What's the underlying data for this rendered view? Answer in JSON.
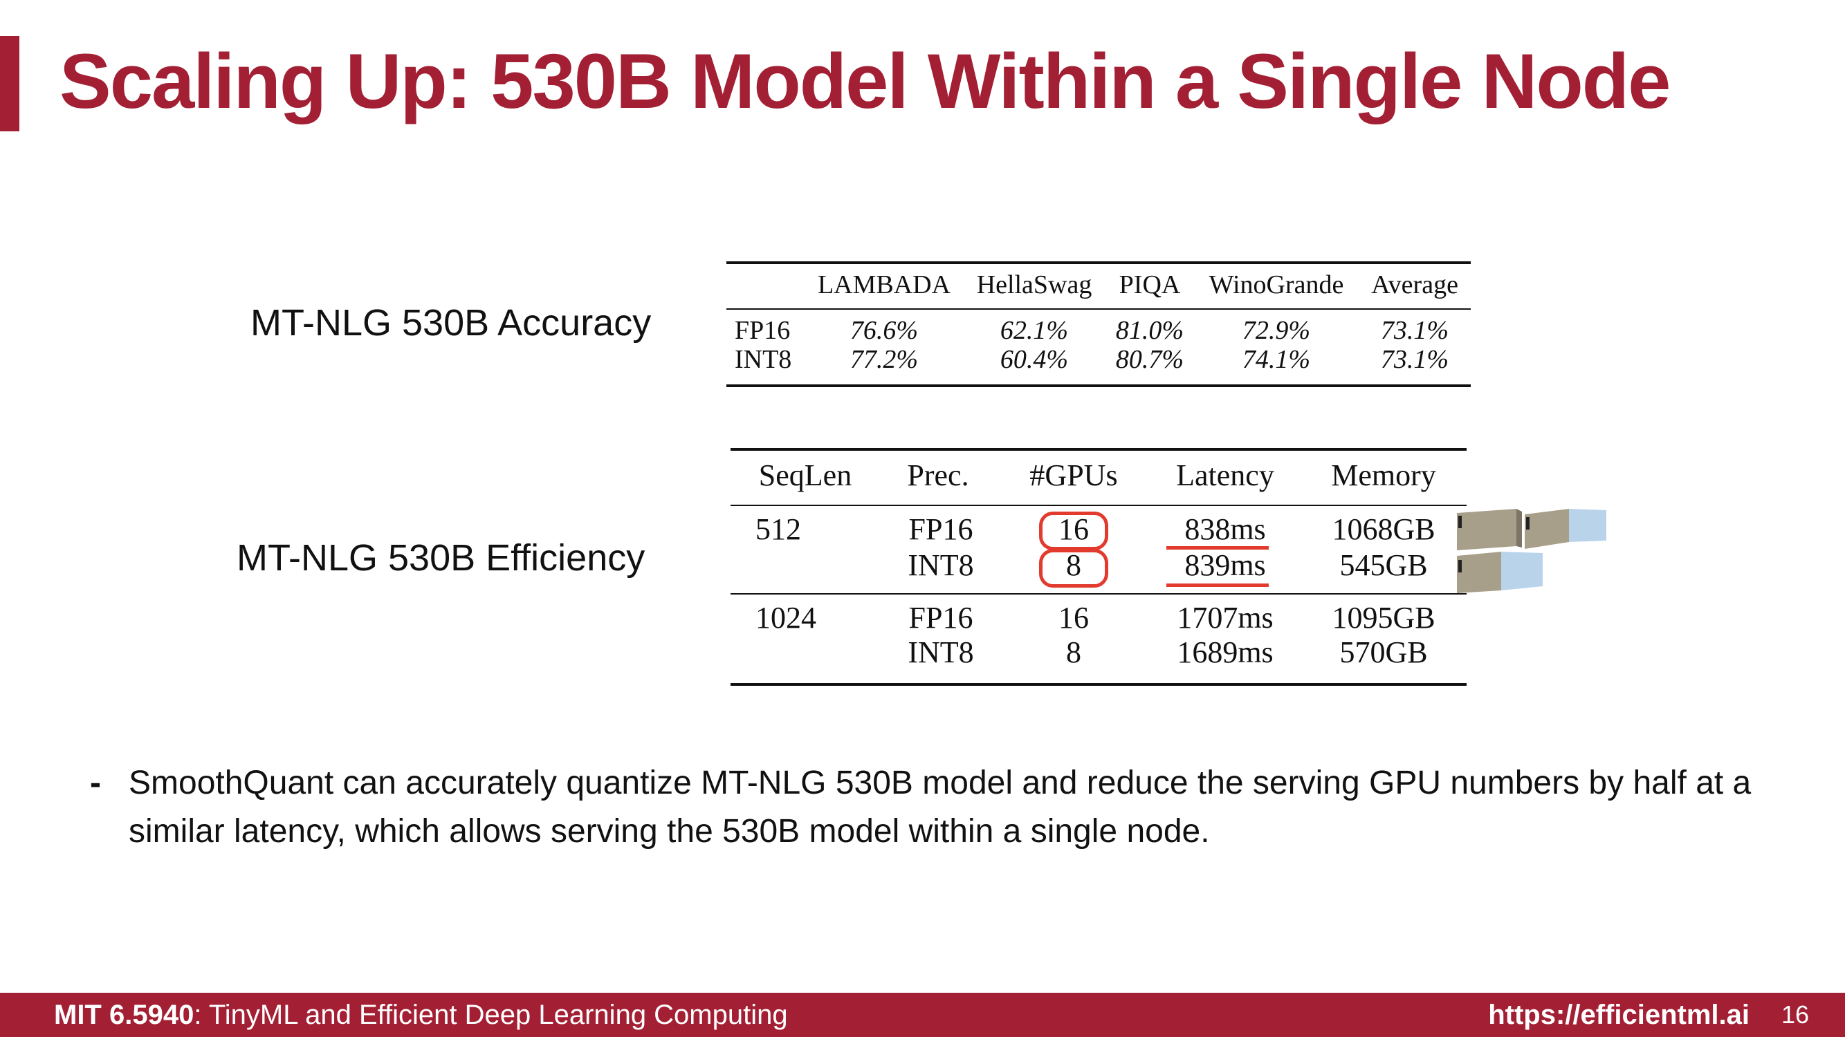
{
  "slide": {
    "title": "Scaling Up: 530B Model Within a Single Node",
    "accuracy_label": "MT-NLG 530B Accuracy",
    "efficiency_label": "MT-NLG 530B Efficiency",
    "bullet": "SmoothQuant can accurately quantize MT-NLG 530B model and reduce the serving GPU numbers by half at a similar latency, which allows serving the 530B model within a single node.",
    "bullet_marker": "-"
  },
  "accuracy_table": {
    "headers": [
      "",
      "LAMBADA",
      "HellaSwag",
      "PIQA",
      "WinoGrande",
      "Average"
    ],
    "rows": [
      [
        "FP16",
        "76.6%",
        "62.1%",
        "81.0%",
        "72.9%",
        "73.1%"
      ],
      [
        "INT8",
        "77.2%",
        "60.4%",
        "80.7%",
        "74.1%",
        "73.1%"
      ]
    ]
  },
  "efficiency_table": {
    "headers": [
      "SeqLen",
      "Prec.",
      "#GPUs",
      "Latency",
      "Memory"
    ],
    "rows": [
      [
        "512",
        "FP16",
        "16",
        "838ms",
        "1068GB"
      ],
      [
        "",
        "INT8",
        "8",
        "839ms",
        "545GB"
      ],
      [
        "1024",
        "FP16",
        "16",
        "1707ms",
        "1095GB"
      ],
      [
        "",
        "INT8",
        "8",
        "1689ms",
        "570GB"
      ]
    ]
  },
  "highlight_colors": {
    "accent": "#a31f34",
    "annotation": "#e23b2e"
  },
  "icons": [
    "server-icon",
    "server-icon",
    "server-icon"
  ],
  "footer": {
    "course_bold": "MIT 6.5940",
    "course_rest": ": TinyML and Efficient Deep Learning Computing",
    "url": "https://efficientml.ai",
    "page": "16"
  }
}
